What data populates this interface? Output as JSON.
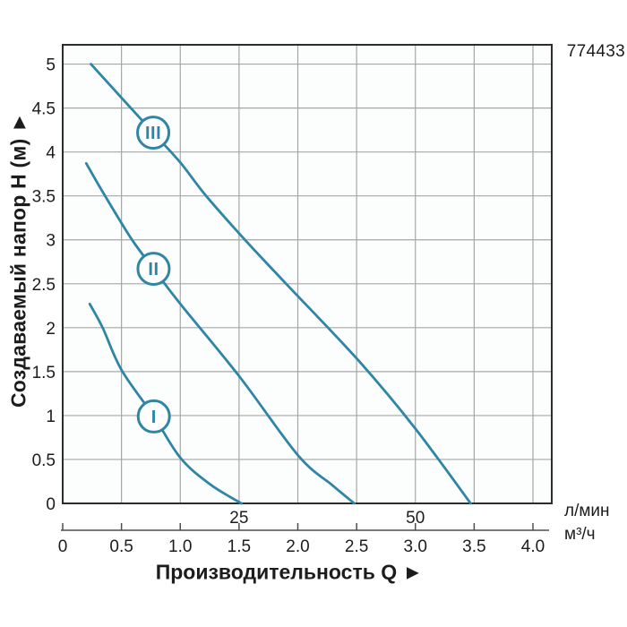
{
  "model_number": "774433",
  "chart_data": {
    "type": "line",
    "title": "",
    "xlabel": "Производительность Q ►",
    "ylabel": "Создаваемый напор H (м) ►",
    "x_unit_primary": "м³/ч",
    "x_unit_secondary": "л/мин",
    "xlim": [
      0,
      4.16
    ],
    "ylim": [
      0,
      5.22
    ],
    "grid": true,
    "legend": false,
    "x_ticks": [
      0,
      0.5,
      1.0,
      1.5,
      2.0,
      2.5,
      3.0,
      3.5,
      4.0
    ],
    "x_tick_labels": [
      "0",
      "0.5",
      "1.0",
      "1.5",
      "2.0",
      "2.5",
      "3.0",
      "3.5",
      "4.0"
    ],
    "y_ticks": [
      0,
      0.5,
      1,
      1.5,
      2,
      2.5,
      3,
      3.5,
      4,
      4.5,
      5
    ],
    "y_tick_labels": [
      "0",
      "0.5",
      "1",
      "1.5",
      "2",
      "2.5",
      "3",
      "3.5",
      "4",
      "4.5",
      "5"
    ],
    "lmin_ticks": [
      {
        "label": "25",
        "x_m3h": 1.5
      },
      {
        "label": "50",
        "x_m3h": 3.0
      }
    ],
    "series": [
      {
        "name": "I",
        "label_at": [
          0.775,
          0.99
        ],
        "points": [
          [
            0.23,
            2.27
          ],
          [
            0.34,
            2.0
          ],
          [
            0.5,
            1.52
          ],
          [
            0.775,
            0.99
          ],
          [
            1.0,
            0.52
          ],
          [
            1.25,
            0.22
          ],
          [
            1.52,
            0
          ]
        ]
      },
      {
        "name": "II",
        "label_at": [
          0.773,
          2.67
        ],
        "points": [
          [
            0.2,
            3.87
          ],
          [
            0.36,
            3.5
          ],
          [
            0.59,
            3.0
          ],
          [
            0.773,
            2.67
          ],
          [
            1.0,
            2.27
          ],
          [
            1.5,
            1.45
          ],
          [
            2.0,
            0.55
          ],
          [
            2.3,
            0.2
          ],
          [
            2.48,
            0
          ]
        ]
      },
      {
        "name": "III",
        "label_at": [
          0.77,
          4.22
        ],
        "points": [
          [
            0.24,
            5.0
          ],
          [
            0.77,
            4.22
          ],
          [
            1.0,
            3.88
          ],
          [
            1.22,
            3.5
          ],
          [
            1.55,
            3.0
          ],
          [
            1.9,
            2.5
          ],
          [
            2.52,
            1.62
          ],
          [
            3.0,
            0.85
          ],
          [
            3.47,
            0
          ]
        ]
      }
    ],
    "colors": {
      "curve": "#2e86a6",
      "grid": "#a6a6a6",
      "frame": "#2c2c2c",
      "secondary_axis": "#4d4d4d",
      "text": "#1c1c1c",
      "plot_bg": "#fcfdfd",
      "circle_fill": "#ffffff"
    }
  }
}
